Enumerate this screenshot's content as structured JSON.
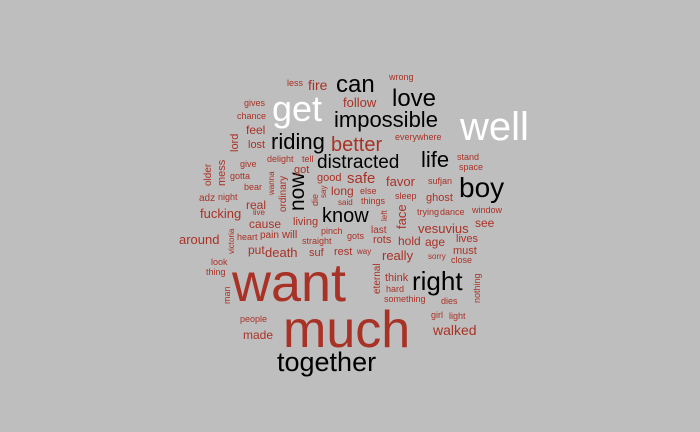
{
  "colors": {
    "background": "#bebebe",
    "black": "#000000",
    "white": "#ffffff",
    "red": "#a93226",
    "lightred": "#b03a2e"
  },
  "words": [
    "want",
    "much",
    "together",
    "well",
    "get",
    "boy",
    "right",
    "can",
    "love",
    "impossible",
    "riding",
    "life",
    "distracted",
    "know",
    "now",
    "better",
    "fire",
    "follow",
    "walked",
    "safe",
    "favor",
    "really",
    "vesuvius",
    "death",
    "fucking",
    "around",
    "feel",
    "lost",
    "lord",
    "mess",
    "older",
    "real",
    "cause",
    "put",
    "made",
    "people",
    "man",
    "look",
    "thing",
    "victoria",
    "heart",
    "pain",
    "will",
    "living",
    "good",
    "long",
    "got",
    "ordinary",
    "wanna",
    "delight",
    "tell",
    "give",
    "gotta",
    "bear",
    "adz",
    "night",
    "live",
    "die",
    "say",
    "said",
    "things",
    "else",
    "gots",
    "pinch",
    "straight",
    "way",
    "rest",
    "suf",
    "rots",
    "last",
    "left",
    "face",
    "hold",
    "age",
    "lives",
    "must",
    "nothing",
    "see",
    "window",
    "dance",
    "trying",
    "ghost",
    "sufjan",
    "sleep",
    "stand",
    "space",
    "everywhere",
    "wrong",
    "less",
    "gives",
    "chance",
    "eternal",
    "think",
    "hard",
    "something",
    "dies",
    "close",
    "sorry",
    "girl",
    "light"
  ]
}
